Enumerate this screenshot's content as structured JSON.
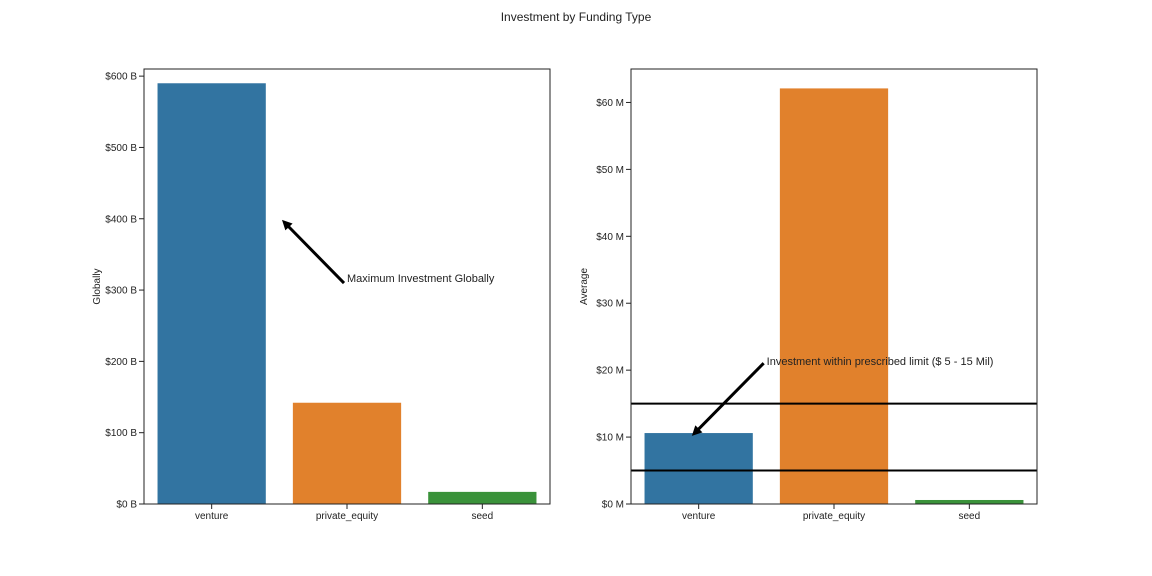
{
  "figure": {
    "title": "Investment by Funding Type"
  },
  "chart_data": [
    {
      "type": "bar",
      "categories": [
        "venture",
        "private_equity",
        "seed"
      ],
      "values": [
        590,
        142,
        17
      ],
      "value_unit": "billion USD",
      "ylabel": "Globally",
      "xlabel": "",
      "ylim": [
        0,
        610
      ],
      "yticks": [
        0,
        100,
        200,
        300,
        400,
        500,
        600
      ],
      "ytick_labels": [
        "$0 B",
        "$100 B",
        "$200 B",
        "$300 B",
        "$400 B",
        "$500 B",
        "$600 B"
      ],
      "bar_colors": [
        "#3274a1",
        "#e1812c",
        "#3a923a"
      ],
      "grid": false,
      "annotations": [
        {
          "text": "Maximum Investment Globally",
          "xy": [
            "venture",
            400
          ],
          "text_at": [
            "private_equity",
            300
          ]
        }
      ]
    },
    {
      "type": "bar",
      "categories": [
        "venture",
        "private_equity",
        "seed"
      ],
      "values": [
        10.6,
        62.1,
        0.6
      ],
      "value_unit": "million USD",
      "ylabel": "Average",
      "xlabel": "",
      "ylim": [
        0,
        65
      ],
      "yticks": [
        0,
        10,
        20,
        30,
        40,
        50,
        60
      ],
      "ytick_labels": [
        "$0 M",
        "$10 M",
        "$20 M",
        "$30 M",
        "$40 M",
        "$50 M",
        "$60 M"
      ],
      "bar_colors": [
        "#3274a1",
        "#e1812c",
        "#3a923a"
      ],
      "grid": false,
      "hlines": [
        5,
        15
      ],
      "annotations": [
        {
          "text": "Investment within prescribed limit ($ 5 - 15 Mil)",
          "xy": [
            "venture",
            10
          ],
          "text_at": [
            "private_equity",
            20
          ]
        }
      ]
    }
  ]
}
